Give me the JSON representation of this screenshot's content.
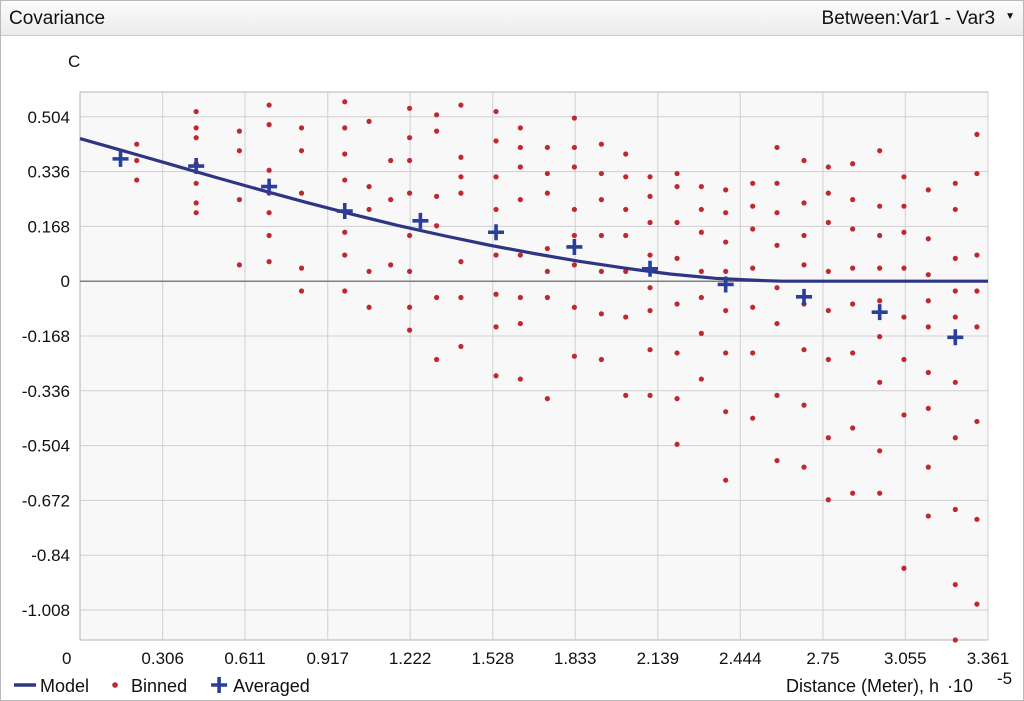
{
  "panel": {
    "title": "Covariance",
    "selector_label": "Between:Var1 - Var3"
  },
  "colors": {
    "model": "#2e3582",
    "binned": "#c0282f",
    "averaged": "#2b3e9a",
    "grid": "#d0d0d0",
    "plot_bg": "#f8f8f8",
    "zero_line": "#808080"
  },
  "icons": {
    "dropdown": "caret-down-icon"
  },
  "chart_data": {
    "type": "scatter",
    "ylabel": "C",
    "xlabel": "Distance (Meter), h",
    "xlabel_scale": "·10",
    "xlabel_exponent": "-5",
    "xlim": [
      0,
      3.361
    ],
    "ylim": [
      -1.1,
      0.58
    ],
    "x_ticks": [
      0,
      0.306,
      0.611,
      0.917,
      1.222,
      1.528,
      1.833,
      2.139,
      2.444,
      2.75,
      3.055,
      3.361
    ],
    "x_tick_labels": [
      "0",
      "0.306",
      "0.611",
      "0.917",
      "1.222",
      "1.528",
      "1.833",
      "2.139",
      "2.444",
      "2.75",
      "3.055",
      "3.361"
    ],
    "y_ticks": [
      0.504,
      0.336,
      0.168,
      0,
      -0.168,
      -0.336,
      -0.504,
      -0.672,
      -0.84,
      -1.008
    ],
    "y_tick_labels": [
      "0.504",
      "0.336",
      "0.168",
      "0",
      "-0.168",
      "-0.336",
      "-0.504",
      "-0.672",
      "-0.84",
      "-1.008"
    ],
    "grid": true,
    "legend": {
      "placement": "bottom-left",
      "entries": [
        {
          "name": "Model",
          "marker": "line"
        },
        {
          "name": "Binned",
          "marker": "dot"
        },
        {
          "name": "Averaged",
          "marker": "plus"
        }
      ]
    },
    "series": [
      {
        "name": "Model",
        "type": "line",
        "x": [
          0,
          0.168,
          0.336,
          0.504,
          0.672,
          0.84,
          1.008,
          1.176,
          1.344,
          1.512,
          1.68,
          1.848,
          2.016,
          2.184,
          2.352,
          2.52,
          2.6,
          2.8,
          3.0,
          3.2,
          3.361
        ],
        "y": [
          0.437,
          0.398,
          0.358,
          0.318,
          0.279,
          0.241,
          0.205,
          0.171,
          0.14,
          0.111,
          0.085,
          0.061,
          0.04,
          0.022,
          0.009,
          0.002,
          0,
          0,
          0,
          0,
          0
        ]
      },
      {
        "name": "Averaged",
        "type": "marker",
        "x": [
          0.15,
          0.43,
          0.7,
          0.98,
          1.26,
          1.54,
          1.83,
          2.11,
          2.39,
          2.68,
          2.96,
          3.24
        ],
        "y": [
          0.375,
          0.353,
          0.29,
          0.215,
          0.185,
          0.15,
          0.105,
          0.038,
          -0.01,
          -0.048,
          -0.095,
          -0.172
        ]
      },
      {
        "name": "Binned",
        "type": "scatter",
        "x": [
          0.21,
          0.21,
          0.21,
          0.43,
          0.43,
          0.43,
          0.43,
          0.43,
          0.43,
          0.43,
          0.43,
          0.59,
          0.59,
          0.59,
          0.59,
          0.7,
          0.7,
          0.7,
          0.7,
          0.7,
          0.7,
          0.7,
          0.82,
          0.82,
          0.82,
          0.82,
          0.82,
          0.98,
          0.98,
          0.98,
          0.98,
          0.98,
          0.98,
          0.98,
          1.07,
          1.07,
          1.07,
          1.07,
          1.07,
          1.15,
          1.15,
          1.15,
          1.22,
          1.22,
          1.22,
          1.22,
          1.22,
          1.22,
          1.22,
          1.22,
          1.32,
          1.32,
          1.32,
          1.32,
          1.32,
          1.32,
          1.41,
          1.41,
          1.41,
          1.41,
          1.41,
          1.41,
          1.41,
          1.54,
          1.54,
          1.54,
          1.54,
          1.54,
          1.54,
          1.54,
          1.54,
          1.63,
          1.63,
          1.63,
          1.63,
          1.63,
          1.63,
          1.63,
          1.63,
          1.73,
          1.73,
          1.73,
          1.73,
          1.73,
          1.73,
          1.73,
          1.83,
          1.83,
          1.83,
          1.83,
          1.83,
          1.83,
          1.83,
          1.83,
          1.93,
          1.93,
          1.93,
          1.93,
          1.93,
          1.93,
          1.93,
          2.02,
          2.02,
          2.02,
          2.02,
          2.02,
          2.02,
          2.02,
          2.11,
          2.11,
          2.11,
          2.11,
          2.11,
          2.11,
          2.11,
          2.11,
          2.21,
          2.21,
          2.21,
          2.21,
          2.21,
          2.21,
          2.21,
          2.21,
          2.3,
          2.3,
          2.3,
          2.3,
          2.3,
          2.3,
          2.3,
          2.39,
          2.39,
          2.39,
          2.39,
          2.39,
          2.39,
          2.39,
          2.39,
          2.49,
          2.49,
          2.49,
          2.49,
          2.49,
          2.49,
          2.49,
          2.58,
          2.58,
          2.58,
          2.58,
          2.58,
          2.58,
          2.58,
          2.58,
          2.68,
          2.68,
          2.68,
          2.68,
          2.68,
          2.68,
          2.68,
          2.68,
          2.77,
          2.77,
          2.77,
          2.77,
          2.77,
          2.77,
          2.77,
          2.77,
          2.86,
          2.86,
          2.86,
          2.86,
          2.86,
          2.86,
          2.86,
          2.86,
          2.96,
          2.96,
          2.96,
          2.96,
          2.96,
          2.96,
          2.96,
          2.96,
          2.96,
          3.05,
          3.05,
          3.05,
          3.05,
          3.05,
          3.05,
          3.05,
          3.05,
          3.14,
          3.14,
          3.14,
          3.14,
          3.14,
          3.14,
          3.14,
          3.14,
          3.14,
          3.24,
          3.24,
          3.24,
          3.24,
          3.24,
          3.24,
          3.24,
          3.24,
          3.24,
          3.24,
          3.32,
          3.32,
          3.32,
          3.32,
          3.32,
          3.32,
          3.32,
          3.32
        ],
        "y": [
          0.42,
          0.37,
          0.31,
          0.52,
          0.47,
          0.44,
          0.36,
          0.3,
          0.24,
          0.21,
          0.36,
          0.46,
          0.4,
          0.25,
          0.05,
          0.54,
          0.48,
          0.34,
          0.27,
          0.21,
          0.14,
          0.06,
          0.47,
          0.4,
          0.27,
          0.04,
          -0.03,
          0.55,
          0.47,
          0.39,
          0.31,
          0.15,
          0.08,
          -0.03,
          0.49,
          0.29,
          0.22,
          0.03,
          -0.08,
          0.37,
          0.25,
          0.05,
          0.53,
          0.44,
          0.37,
          0.27,
          0.14,
          0.03,
          -0.08,
          -0.15,
          0.51,
          0.46,
          0.26,
          0.17,
          -0.05,
          -0.24,
          0.54,
          0.38,
          0.32,
          0.27,
          0.06,
          -0.05,
          -0.2,
          0.52,
          0.43,
          0.32,
          0.22,
          0.08,
          -0.04,
          -0.14,
          -0.29,
          0.47,
          0.41,
          0.35,
          0.25,
          0.08,
          -0.05,
          -0.13,
          -0.3,
          0.41,
          0.33,
          0.27,
          0.1,
          0.03,
          -0.05,
          -0.36,
          0.5,
          0.41,
          0.35,
          0.22,
          0.14,
          0.05,
          -0.08,
          -0.23,
          0.42,
          0.33,
          0.25,
          0.14,
          0.03,
          -0.1,
          -0.24,
          0.39,
          0.32,
          0.22,
          0.14,
          0.03,
          -0.11,
          -0.35,
          0.32,
          0.26,
          0.18,
          0.08,
          -0.02,
          -0.09,
          -0.21,
          -0.35,
          0.33,
          0.29,
          0.18,
          0.07,
          -0.07,
          -0.22,
          -0.36,
          -0.5,
          0.29,
          0.22,
          0.15,
          0.03,
          -0.05,
          -0.16,
          -0.3,
          0.28,
          0.21,
          0.12,
          0.03,
          -0.09,
          -0.22,
          -0.4,
          -0.61,
          0.3,
          0.23,
          0.16,
          0.04,
          -0.08,
          -0.22,
          -0.42,
          0.41,
          0.3,
          0.21,
          0.11,
          -0.02,
          -0.13,
          -0.35,
          -0.55,
          0.37,
          0.24,
          0.14,
          0.05,
          -0.07,
          -0.21,
          -0.38,
          -0.57,
          0.35,
          0.27,
          0.18,
          0.03,
          -0.09,
          -0.24,
          -0.48,
          -0.67,
          0.36,
          0.25,
          0.16,
          0.04,
          -0.07,
          -0.22,
          -0.45,
          -0.65,
          0.4,
          0.23,
          0.14,
          0.04,
          -0.06,
          -0.17,
          -0.31,
          -0.52,
          -0.65,
          0.32,
          0.23,
          0.15,
          0.04,
          -0.11,
          -0.24,
          -0.41,
          -0.88,
          0.28,
          0.13,
          0.02,
          -0.06,
          -0.14,
          -0.28,
          -0.39,
          -0.57,
          -0.72,
          0.3,
          0.22,
          0.07,
          -0.03,
          -0.11,
          -0.31,
          -0.48,
          -0.7,
          -0.93,
          -1.1,
          0.45,
          0.33,
          0.08,
          -0.03,
          -0.14,
          -0.43,
          -0.73,
          -0.99
        ]
      }
    ]
  }
}
